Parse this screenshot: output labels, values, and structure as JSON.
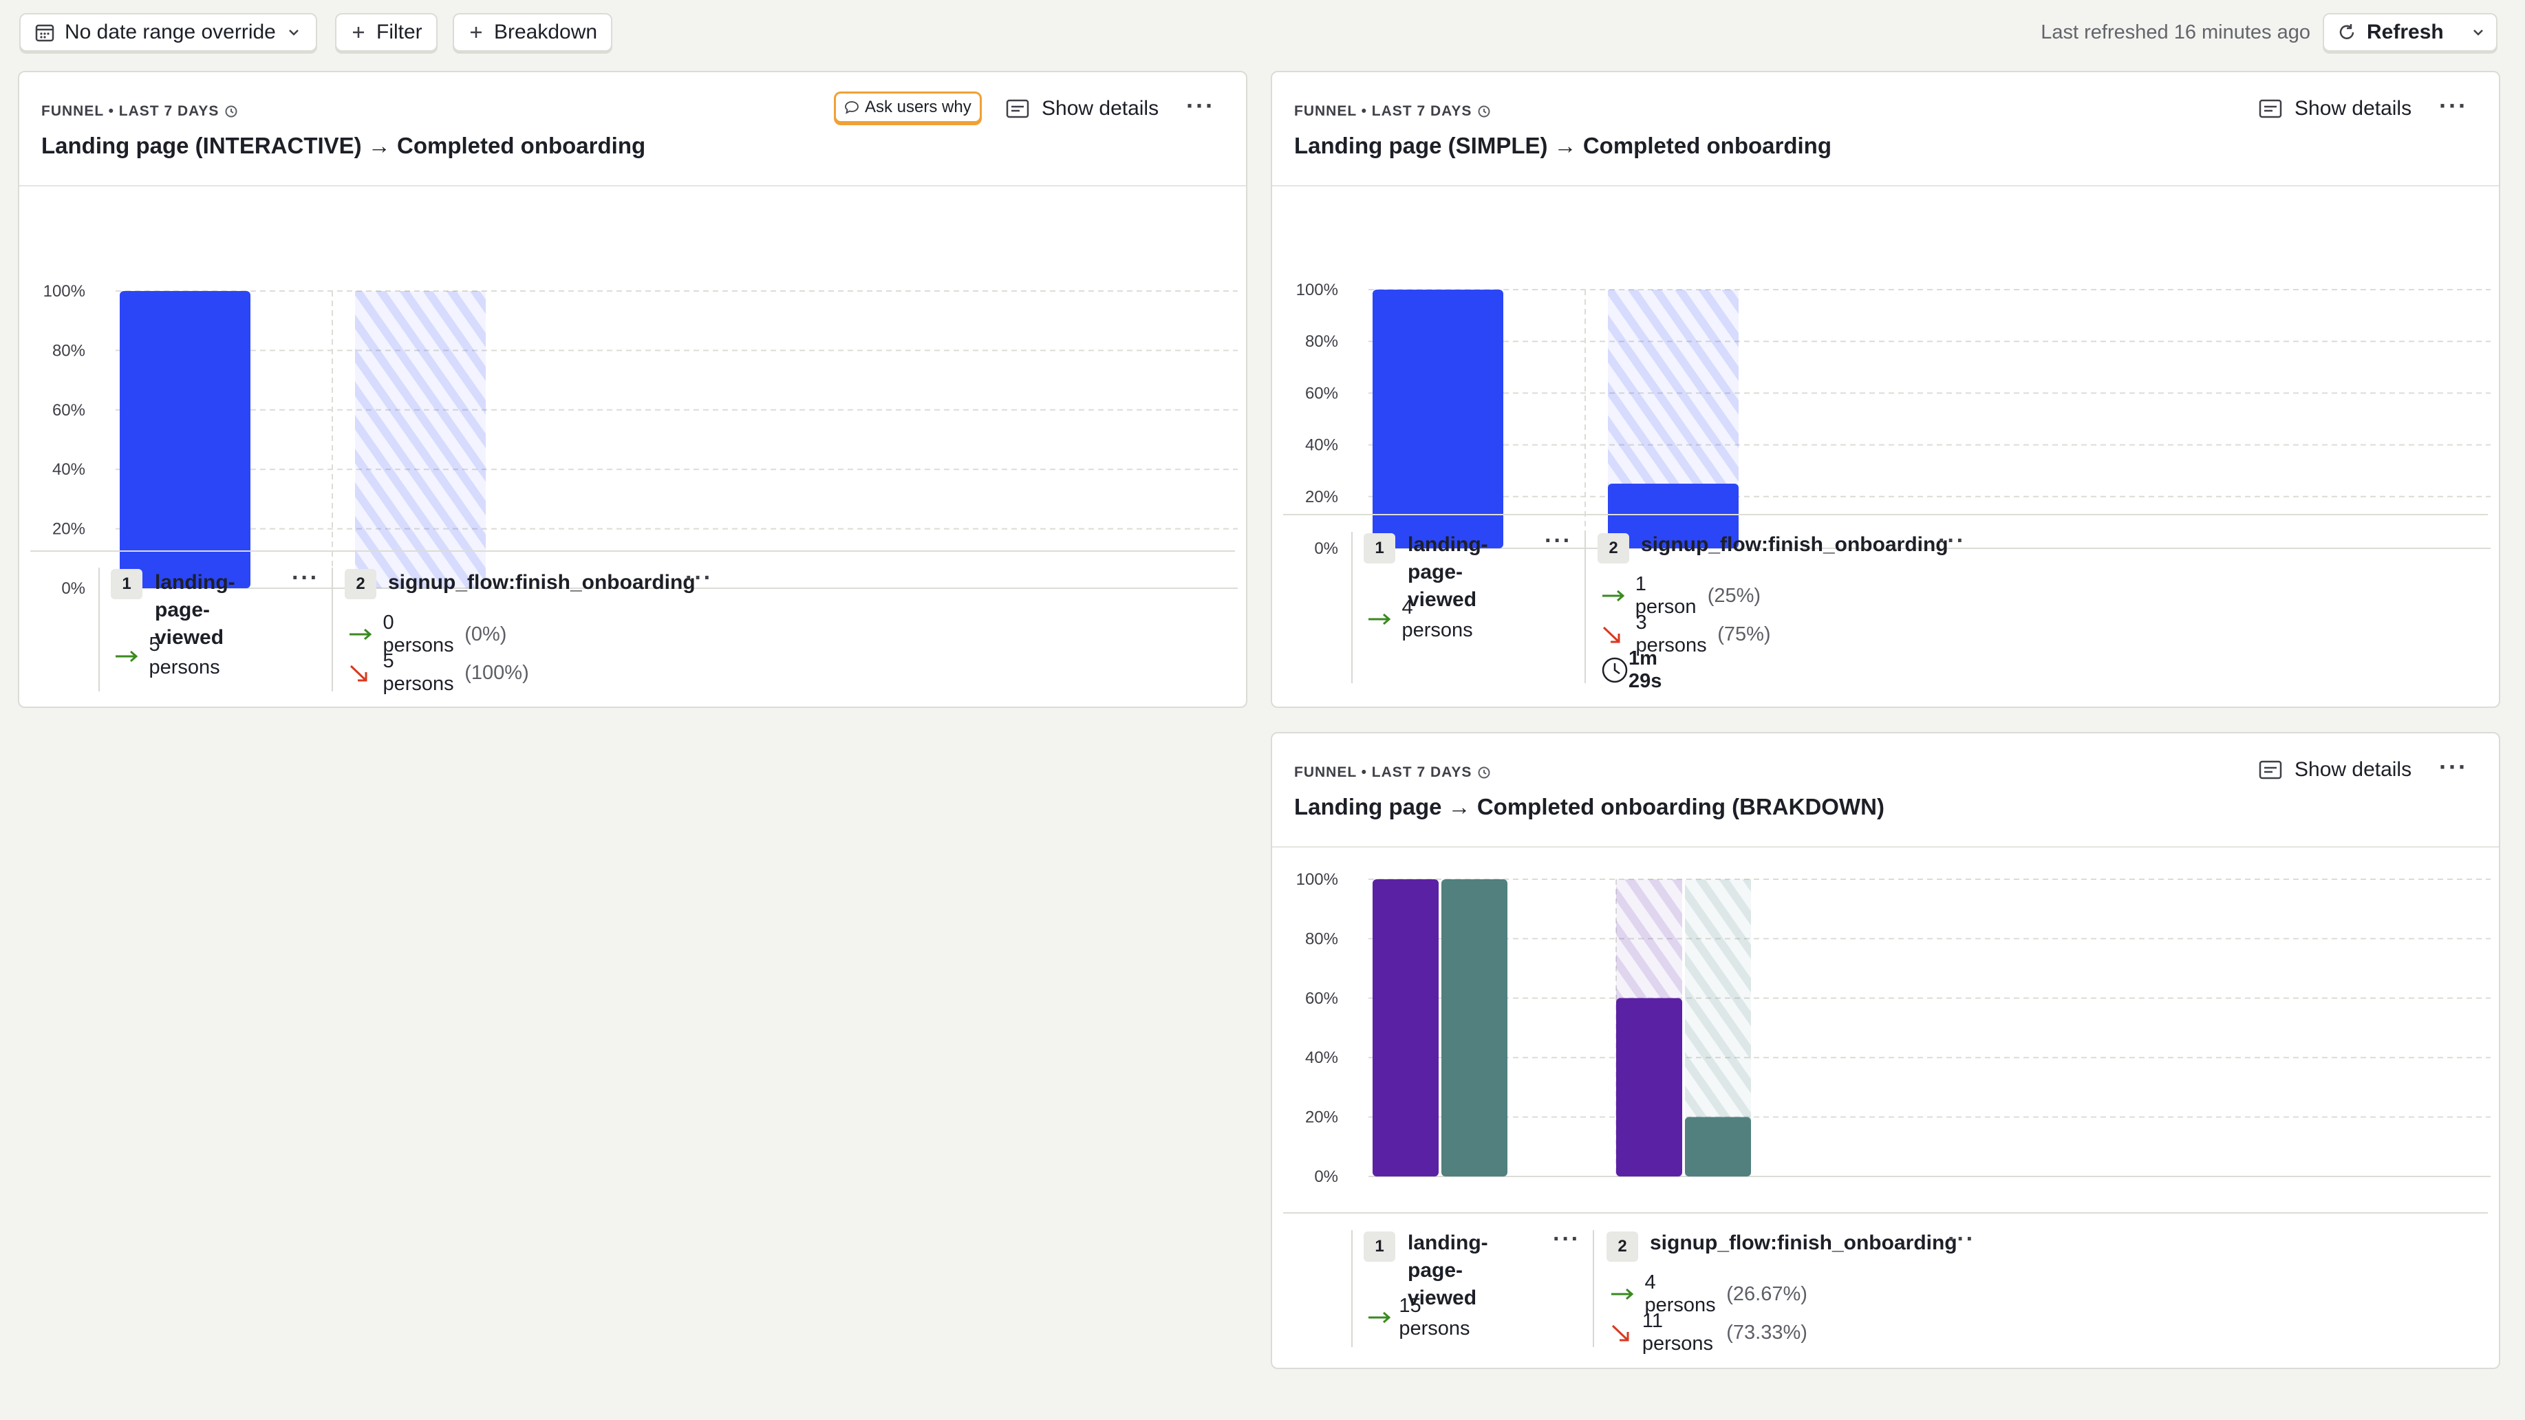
{
  "toolbar": {
    "date_override_label": "No date range override",
    "filter_label": "Filter",
    "breakdown_label": "Breakdown",
    "last_refreshed": "Last refreshed 16 minutes ago",
    "refresh_label": "Refresh"
  },
  "cards": [
    {
      "meta": "FUNNEL • LAST 7 DAYS",
      "title": "Landing page (INTERACTIVE) → Completed onboarding",
      "ask_users_label": "Ask users why",
      "show_details_label": "Show details",
      "steps": [
        {
          "num": "1",
          "name_lines": [
            "landing-",
            "page-viewed"
          ],
          "converted": "5 persons",
          "converted_pct": ""
        },
        {
          "num": "2",
          "name_lines": [
            "signup_flow:finish_onboarding"
          ],
          "converted": "0 persons",
          "converted_pct": "(0%)",
          "dropped": "5 persons",
          "dropped_pct": "(100%)"
        }
      ]
    },
    {
      "meta": "FUNNEL • LAST 7 DAYS",
      "title": "Landing page (SIMPLE) → Completed onboarding",
      "show_details_label": "Show details",
      "steps": [
        {
          "num": "1",
          "name_lines": [
            "landing-",
            "page-viewed"
          ],
          "converted": "4 persons",
          "converted_pct": ""
        },
        {
          "num": "2",
          "name_lines": [
            "signup_flow:finish_onboarding"
          ],
          "converted": "1 person",
          "converted_pct": "(25%)",
          "dropped": "3 persons",
          "dropped_pct": "(75%)",
          "time": "1m 29s"
        }
      ]
    },
    {
      "meta": "FUNNEL • LAST 7 DAYS",
      "title": "Landing page → Completed onboarding (BRAKDOWN)",
      "show_details_label": "Show details",
      "steps": [
        {
          "num": "1",
          "name_lines": [
            "landing-page-",
            "viewed"
          ],
          "converted": "15 persons",
          "converted_pct": ""
        },
        {
          "num": "2",
          "name_lines": [
            "signup_flow:finish_onboarding"
          ],
          "converted": "4 persons",
          "converted_pct": "(26.67%)",
          "dropped": "11 persons",
          "dropped_pct": "(73.33%)"
        }
      ]
    }
  ],
  "chart_data": [
    {
      "type": "bar",
      "categories": [
        "landing-page-viewed",
        "signup_flow:finish_onboarding"
      ],
      "series": [
        {
          "values": [
            100,
            0
          ],
          "color": "#2b46f6"
        }
      ],
      "yticks": [
        "100%",
        "80%",
        "60%",
        "40%",
        "20%",
        "0%"
      ],
      "ylim": [
        0,
        100
      ],
      "grid": true
    },
    {
      "type": "bar",
      "categories": [
        "landing-page-viewed",
        "signup_flow:finish_onboarding"
      ],
      "series": [
        {
          "values": [
            100,
            25
          ],
          "color": "#2b46f6"
        }
      ],
      "yticks": [
        "100%",
        "80%",
        "60%",
        "40%",
        "20%",
        "0%"
      ],
      "ylim": [
        0,
        100
      ],
      "grid": true
    },
    {
      "type": "bar",
      "categories": [
        "landing-page-viewed",
        "signup_flow:finish_onboarding"
      ],
      "series": [
        {
          "values": [
            100,
            60
          ],
          "color": "#5b21a4"
        },
        {
          "values": [
            100,
            20
          ],
          "color": "#51807f"
        }
      ],
      "yticks": [
        "100%",
        "80%",
        "60%",
        "40%",
        "20%",
        "0%"
      ],
      "ylim": [
        0,
        100
      ],
      "grid": true
    }
  ],
  "colors": {
    "converted_arrow": "#3a8a1f",
    "dropped_arrow": "#d9391f",
    "accent": "#2b46f6"
  }
}
